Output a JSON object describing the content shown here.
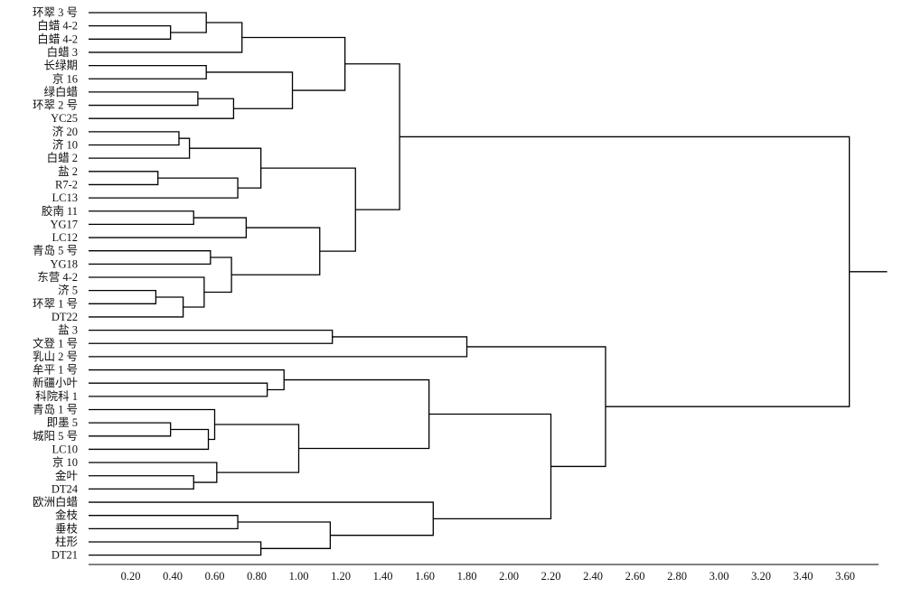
{
  "chart_data": {
    "type": "dendrogram",
    "orientation": "left-to-right",
    "xlabel": "",
    "ylabel": "",
    "xlim": [
      0,
      3.75
    ],
    "axis_ticks": [
      "0.20",
      "0.40",
      "0.60",
      "0.80",
      "1.00",
      "1.20",
      "1.40",
      "1.60",
      "1.80",
      "2.00",
      "2.20",
      "2.40",
      "2.60",
      "2.80",
      "3.00",
      "3.20",
      "3.40",
      "3.60"
    ],
    "tick_values": [
      0.2,
      0.4,
      0.6,
      0.8,
      1.0,
      1.2,
      1.4,
      1.6,
      1.8,
      2.0,
      2.2,
      2.4,
      2.6,
      2.8,
      3.0,
      3.2,
      3.4,
      3.6
    ],
    "leaves": [
      "环翠 3 号",
      "白蜡 4-2",
      "白蜡 4-2",
      "白蜡 3",
      "长绿期",
      "京 16",
      "绿白蜡",
      "环翠 2 号",
      "YC25",
      "济 20",
      "济 10",
      "白蜡 2",
      "盐 2",
      "R7-2",
      "LC13",
      "胶南 11",
      "YG17",
      "LC12",
      "青岛 5 号",
      "YG18",
      "东营 4-2",
      "济 5",
      "环翠 1 号",
      "DT22",
      "盐 3",
      "文登 1 号",
      "乳山 2 号",
      "牟平 1 号",
      "新疆小叶",
      "科院科 1",
      "青岛 1 号",
      "即墨 5",
      "城阳 5 号",
      "LC10",
      "京 10",
      "金叶",
      "DT24",
      "欧洲白蜡",
      "金枝",
      "垂枝",
      "柱形",
      "DT21"
    ],
    "merges": [
      {
        "a": "L1",
        "b": "L2",
        "h": 0.39
      },
      {
        "a": "L0",
        "b": "N0",
        "h": 0.56
      },
      {
        "a": "N1",
        "b": "L3",
        "h": 0.73
      },
      {
        "a": "L4",
        "b": "L5",
        "h": 0.56
      },
      {
        "a": "L6",
        "b": "L7",
        "h": 0.52
      },
      {
        "a": "N4",
        "b": "L8",
        "h": 0.69
      },
      {
        "a": "N3",
        "b": "N5",
        "h": 0.97
      },
      {
        "a": "N2",
        "b": "N6",
        "h": 1.22
      },
      {
        "a": "L9",
        "b": "L10",
        "h": 0.43
      },
      {
        "a": "N8",
        "b": "L11",
        "h": 0.48
      },
      {
        "a": "L12",
        "b": "L13",
        "h": 0.33
      },
      {
        "a": "N10",
        "b": "L14",
        "h": 0.71
      },
      {
        "a": "N9",
        "b": "N11",
        "h": 0.82
      },
      {
        "a": "L15",
        "b": "L16",
        "h": 0.5
      },
      {
        "a": "N13",
        "b": "L17",
        "h": 0.75
      },
      {
        "a": "L18",
        "b": "L19",
        "h": 0.58
      },
      {
        "a": "L21",
        "b": "L22",
        "h": 0.32
      },
      {
        "a": "N16",
        "b": "L23",
        "h": 0.45
      },
      {
        "a": "L20",
        "b": "N17",
        "h": 0.55
      },
      {
        "a": "N15",
        "b": "N18",
        "h": 0.68
      },
      {
        "a": "N14",
        "b": "N19",
        "h": 1.1
      },
      {
        "a": "N12",
        "b": "N20",
        "h": 1.27
      },
      {
        "a": "N7",
        "b": "N21",
        "h": 1.48
      },
      {
        "a": "L24",
        "b": "L25",
        "h": 1.16
      },
      {
        "a": "N23",
        "b": "L26",
        "h": 1.8
      },
      {
        "a": "L28",
        "b": "L29",
        "h": 0.85
      },
      {
        "a": "L27",
        "b": "N25",
        "h": 0.93
      },
      {
        "a": "L31",
        "b": "L32",
        "h": 0.39
      },
      {
        "a": "N27",
        "b": "L33",
        "h": 0.57
      },
      {
        "a": "L30",
        "b": "N28",
        "h": 0.6
      },
      {
        "a": "L35",
        "b": "L36",
        "h": 0.5
      },
      {
        "a": "L34",
        "b": "N30",
        "h": 0.61
      },
      {
        "a": "N29",
        "b": "N31",
        "h": 1.0
      },
      {
        "a": "N26",
        "b": "N32",
        "h": 1.62
      },
      {
        "a": "L38",
        "b": "L39",
        "h": 0.71
      },
      {
        "a": "L40",
        "b": "L41",
        "h": 0.82
      },
      {
        "a": "N34",
        "b": "N35",
        "h": 1.15
      },
      {
        "a": "L37",
        "b": "N36",
        "h": 1.64
      },
      {
        "a": "N33",
        "b": "N37",
        "h": 2.2
      },
      {
        "a": "N24",
        "b": "N38",
        "h": 2.46
      },
      {
        "a": "N22",
        "b": "N39",
        "h": 3.62
      }
    ],
    "root_extends_to": 3.8,
    "grid": false,
    "legend": "none"
  }
}
